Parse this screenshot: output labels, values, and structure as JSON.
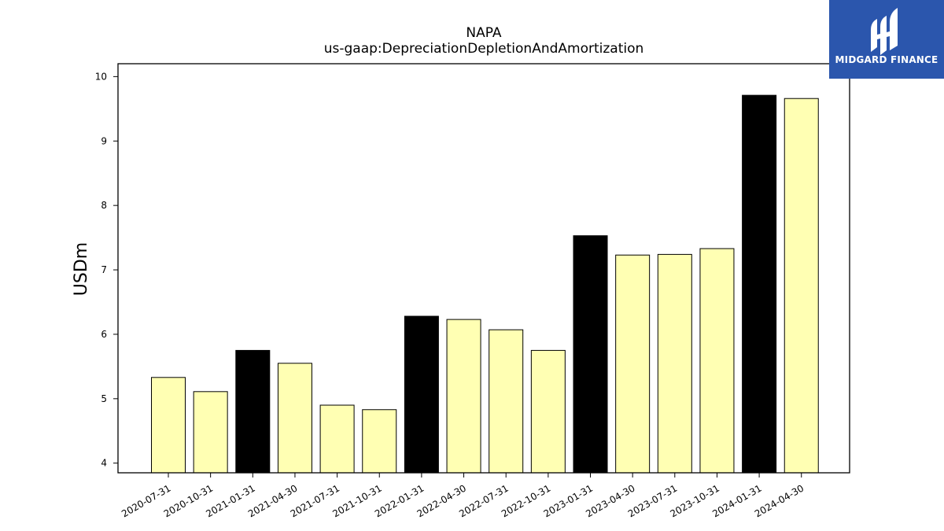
{
  "logo": {
    "text": "MIDGARD FINANCE",
    "icon": "midgard-logo-mark-icon",
    "background": "#2b56ad"
  },
  "chart_data": {
    "type": "bar",
    "title": "NAPA",
    "subtitle": "us-gaap:DepreciationDepletionAndAmortization",
    "ylabel": "USDm",
    "xlabel": "",
    "ylim": [
      3.85,
      10.2
    ],
    "yticks": [
      4,
      5,
      6,
      7,
      8,
      9,
      10
    ],
    "grid": false,
    "categories": [
      "2020-07-31",
      "2020-10-31",
      "2021-01-31",
      "2021-04-30",
      "2021-07-31",
      "2021-10-31",
      "2022-01-31",
      "2022-04-30",
      "2022-07-31",
      "2022-10-31",
      "2023-01-31",
      "2023-04-30",
      "2023-07-31",
      "2023-10-31",
      "2024-01-31",
      "2024-04-30"
    ],
    "values": [
      5.33,
      5.11,
      5.75,
      5.55,
      4.9,
      4.83,
      6.28,
      6.23,
      6.07,
      5.75,
      7.53,
      7.23,
      7.24,
      7.33,
      9.71,
      9.66
    ],
    "highlighted": [
      false,
      false,
      true,
      false,
      false,
      false,
      true,
      false,
      false,
      false,
      true,
      false,
      false,
      false,
      true,
      false
    ],
    "colors": {
      "bar": "#ffffb3",
      "highlight": "#000000",
      "edge": "#000000"
    }
  }
}
